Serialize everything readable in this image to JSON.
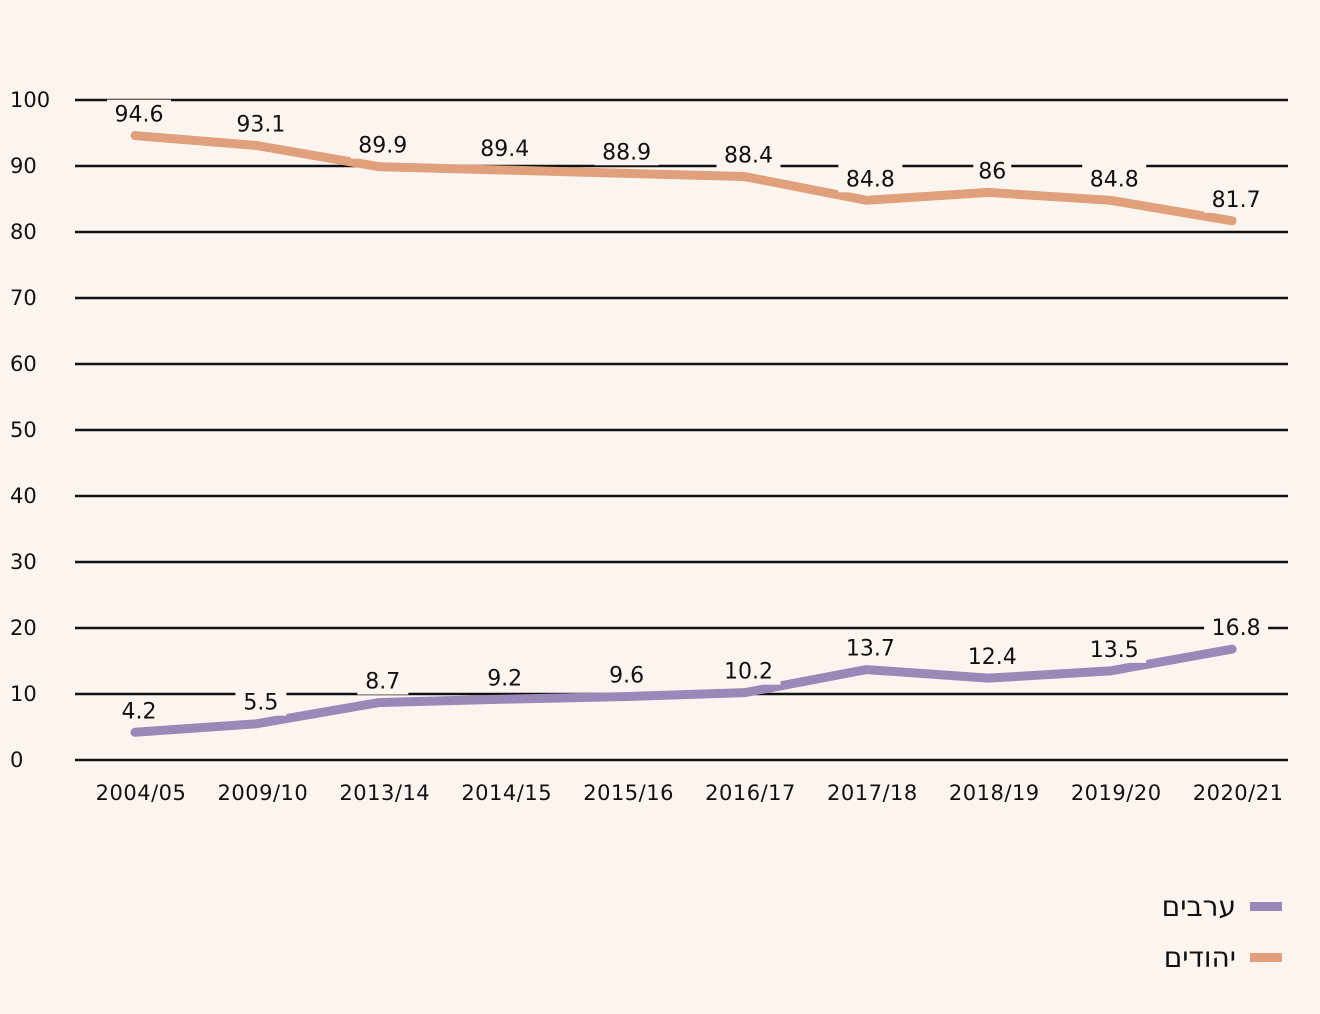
{
  "chart_data": {
    "type": "line",
    "categories": [
      "2004/05",
      "2009/10",
      "2013/14",
      "2014/15",
      "2015/16",
      "2016/17",
      "2017/18",
      "2018/19",
      "2019/20",
      "2020/21"
    ],
    "ylim": [
      0,
      100
    ],
    "yticks": [
      0,
      10,
      20,
      30,
      40,
      50,
      60,
      70,
      80,
      90,
      100
    ],
    "grid": true,
    "legend_position": "bottom-right",
    "series": [
      {
        "name": "יהודים",
        "color": "#e0a07c",
        "values": [
          94.6,
          93.1,
          89.9,
          89.4,
          88.9,
          88.4,
          84.8,
          86,
          84.8,
          81.7
        ],
        "labels": [
          "94.6",
          "93.1",
          "89.9",
          "89.4",
          "88.9",
          "88.4",
          "84.8",
          "86",
          "84.8",
          "81.7"
        ]
      },
      {
        "name": "ערבים",
        "color": "#9b87b8",
        "values": [
          4.2,
          5.5,
          8.7,
          9.2,
          9.6,
          10.2,
          13.7,
          12.4,
          13.5,
          16.8
        ],
        "labels": [
          "4.2",
          "5.5",
          "8.7",
          "9.2",
          "9.6",
          "10.2",
          "13.7",
          "12.4",
          "13.5",
          "16.8"
        ]
      }
    ]
  },
  "legend": {
    "arabs": {
      "label": "ערבים",
      "color": "#9b87b8"
    },
    "jews": {
      "label": "יהודים",
      "color": "#e0a07c"
    }
  }
}
